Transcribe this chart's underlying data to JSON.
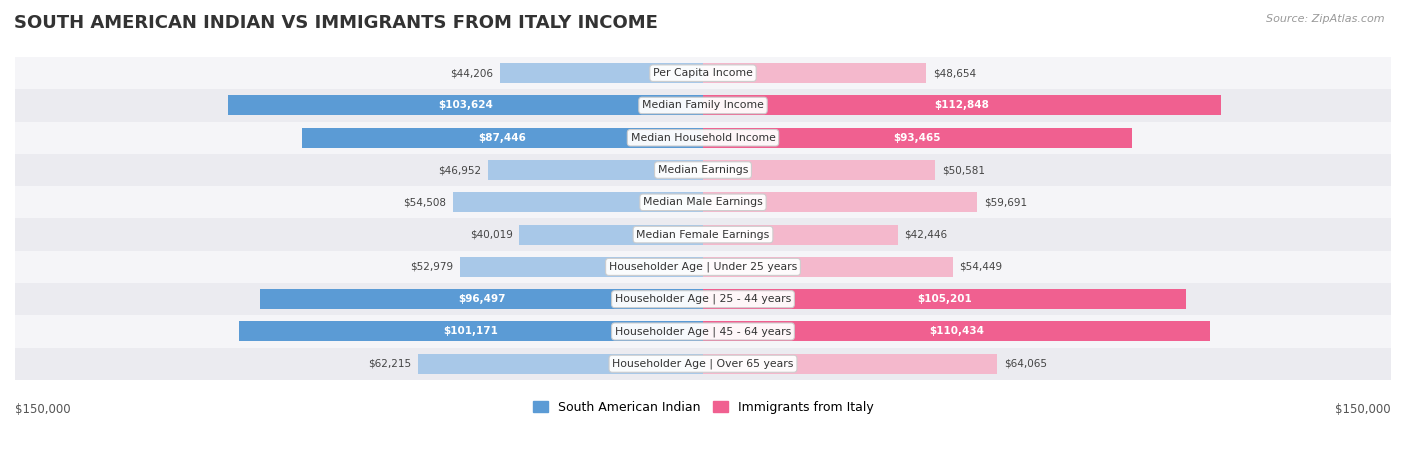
{
  "title": "SOUTH AMERICAN INDIAN VS IMMIGRANTS FROM ITALY INCOME",
  "source": "Source: ZipAtlas.com",
  "categories": [
    "Per Capita Income",
    "Median Family Income",
    "Median Household Income",
    "Median Earnings",
    "Median Male Earnings",
    "Median Female Earnings",
    "Householder Age | Under 25 years",
    "Householder Age | 25 - 44 years",
    "Householder Age | 45 - 64 years",
    "Householder Age | Over 65 years"
  ],
  "south_american_indian": [
    44206,
    103624,
    87446,
    46952,
    54508,
    40019,
    52979,
    96497,
    101171,
    62215
  ],
  "immigrants_from_italy": [
    48654,
    112848,
    93465,
    50581,
    59691,
    42446,
    54449,
    105201,
    110434,
    64065
  ],
  "south_american_labels": [
    "$44,206",
    "$103,624",
    "$87,446",
    "$46,952",
    "$54,508",
    "$40,019",
    "$52,979",
    "$96,497",
    "$101,171",
    "$62,215"
  ],
  "immigrants_labels": [
    "$48,654",
    "$112,848",
    "$93,465",
    "$50,581",
    "$59,691",
    "$42,446",
    "$54,449",
    "$105,201",
    "$110,434",
    "$64,065"
  ],
  "max_val": 150000,
  "color_blue_light": "#a8c8e8",
  "color_blue_dark": "#5b9bd5",
  "color_pink_light": "#f4b8cc",
  "color_pink_dark": "#f06090",
  "label_inside_threshold": 80000,
  "legend_blue": "South American Indian",
  "legend_pink": "Immigrants from Italy",
  "bg_color": "#f0f0f0",
  "row_bg": "#f5f5f8",
  "row_bg_alt": "#ebebf0"
}
